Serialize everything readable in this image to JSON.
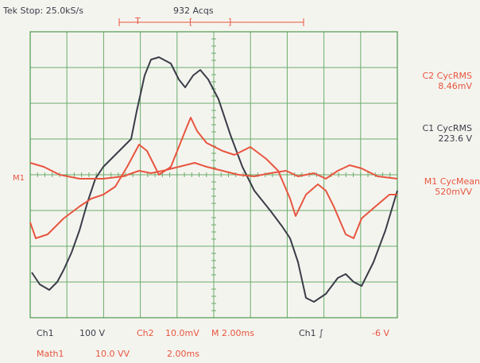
{
  "header": {
    "status": "Tek Stop: 25.0kS/s",
    "acquisitions": "932 Acqs",
    "trigger_marker": "T"
  },
  "measurements": [
    {
      "label": "C2 CycRMS",
      "value": "8.46mV"
    },
    {
      "label": "C1 CycRMS",
      "value": "223.6 V"
    },
    {
      "label": "M1 CycMean",
      "value": "520mVV"
    }
  ],
  "ground_marker": "M1",
  "footer": {
    "row1": [
      "Ch1",
      "100 V",
      "Ch2",
      "10.0mV",
      "M 2.00ms",
      "Ch1 ∫",
      "-6 V"
    ],
    "row2": [
      "Math1",
      "10.0 VV",
      "2.00ms"
    ]
  }
}
